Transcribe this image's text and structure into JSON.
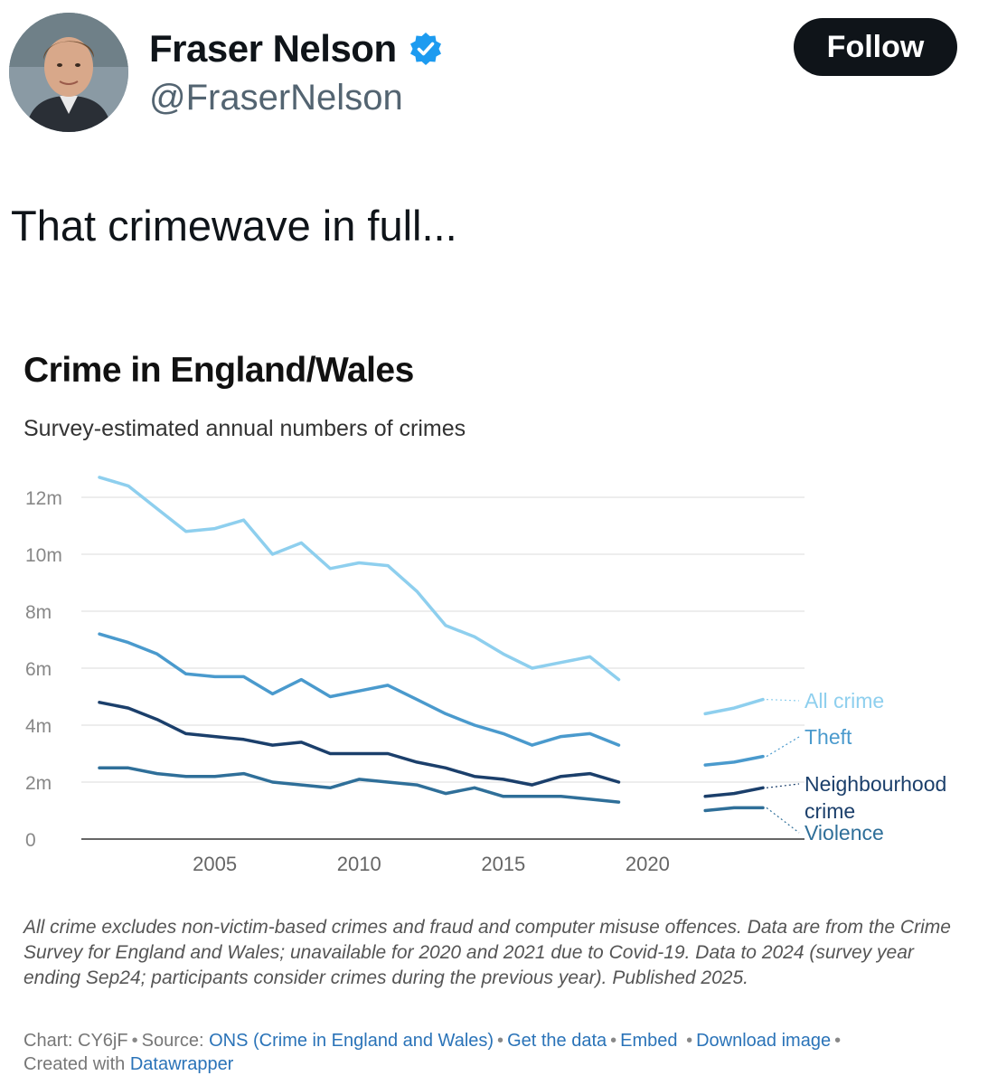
{
  "tweet": {
    "display_name": "Fraser Nelson",
    "handle": "@FraserNelson",
    "follow_label": "Follow",
    "text": "That crimewave in full...",
    "verified_icon": "verified-badge-icon",
    "colors": {
      "verified": "#1d9bf0",
      "follow_bg": "#0f1419",
      "handle": "#536471"
    }
  },
  "chart_data": {
    "type": "line",
    "title": "Crime in England/Wales",
    "subtitle": "Survey-estimated annual numbers of crimes",
    "ylim": [
      0,
      12
    ],
    "y_ticks": [
      {
        "value": 0,
        "label": "0"
      },
      {
        "value": 2,
        "label": "2m"
      },
      {
        "value": 4,
        "label": "4m"
      },
      {
        "value": 6,
        "label": "6m"
      },
      {
        "value": 8,
        "label": "8m"
      },
      {
        "value": 10,
        "label": "10m"
      },
      {
        "value": 12,
        "label": "12m"
      }
    ],
    "x_ticks": [
      {
        "value": 2005,
        "label": "2005"
      },
      {
        "value": 2010,
        "label": "2010"
      },
      {
        "value": 2015,
        "label": "2015"
      },
      {
        "value": 2020,
        "label": "2020"
      }
    ],
    "xlim": [
      2001,
      2024.5
    ],
    "grid": true,
    "legend": "right, direct labels",
    "series": [
      {
        "name": "All crime",
        "color": "#8ecfee",
        "segments": [
          [
            [
              2001,
              12.7
            ],
            [
              2002,
              12.4
            ],
            [
              2003,
              11.6
            ],
            [
              2004,
              10.8
            ],
            [
              2005,
              10.9
            ],
            [
              2006,
              11.2
            ],
            [
              2007,
              10.0
            ],
            [
              2008,
              10.4
            ],
            [
              2009,
              9.5
            ],
            [
              2010,
              9.7
            ],
            [
              2011,
              9.6
            ],
            [
              2012,
              8.7
            ],
            [
              2013,
              7.5
            ],
            [
              2014,
              7.1
            ],
            [
              2015,
              6.5
            ],
            [
              2016,
              6.0
            ],
            [
              2017,
              6.2
            ],
            [
              2018,
              6.4
            ],
            [
              2019,
              5.6
            ]
          ],
          [
            [
              2022,
              4.4
            ],
            [
              2023,
              4.6
            ],
            [
              2024,
              4.9
            ]
          ]
        ]
      },
      {
        "name": "Theft",
        "color": "#4a9acd",
        "segments": [
          [
            [
              2001,
              7.2
            ],
            [
              2002,
              6.9
            ],
            [
              2003,
              6.5
            ],
            [
              2004,
              5.8
            ],
            [
              2005,
              5.7
            ],
            [
              2006,
              5.7
            ],
            [
              2007,
              5.1
            ],
            [
              2008,
              5.6
            ],
            [
              2009,
              5.0
            ],
            [
              2010,
              5.2
            ],
            [
              2011,
              5.4
            ],
            [
              2012,
              4.9
            ],
            [
              2013,
              4.4
            ],
            [
              2014,
              4.0
            ],
            [
              2015,
              3.7
            ],
            [
              2016,
              3.3
            ],
            [
              2017,
              3.6
            ],
            [
              2018,
              3.7
            ],
            [
              2019,
              3.3
            ]
          ],
          [
            [
              2022,
              2.6
            ],
            [
              2023,
              2.7
            ],
            [
              2024,
              2.9
            ]
          ]
        ]
      },
      {
        "name": "Neighbourhood crime",
        "color": "#1b3f6b",
        "segments": [
          [
            [
              2001,
              4.8
            ],
            [
              2002,
              4.6
            ],
            [
              2003,
              4.2
            ],
            [
              2004,
              3.7
            ],
            [
              2005,
              3.6
            ],
            [
              2006,
              3.5
            ],
            [
              2007,
              3.3
            ],
            [
              2008,
              3.4
            ],
            [
              2009,
              3.0
            ],
            [
              2010,
              3.0
            ],
            [
              2011,
              3.0
            ],
            [
              2012,
              2.7
            ],
            [
              2013,
              2.5
            ],
            [
              2014,
              2.2
            ],
            [
              2015,
              2.1
            ],
            [
              2016,
              1.9
            ],
            [
              2017,
              2.2
            ],
            [
              2018,
              2.3
            ],
            [
              2019,
              2.0
            ]
          ],
          [
            [
              2022,
              1.5
            ],
            [
              2023,
              1.6
            ],
            [
              2024,
              1.8
            ]
          ]
        ]
      },
      {
        "name": "Violence",
        "color": "#2f6f99",
        "segments": [
          [
            [
              2001,
              2.5
            ],
            [
              2002,
              2.5
            ],
            [
              2003,
              2.3
            ],
            [
              2004,
              2.2
            ],
            [
              2005,
              2.2
            ],
            [
              2006,
              2.3
            ],
            [
              2007,
              2.0
            ],
            [
              2008,
              1.9
            ],
            [
              2009,
              1.8
            ],
            [
              2010,
              2.1
            ],
            [
              2011,
              2.0
            ],
            [
              2012,
              1.9
            ],
            [
              2013,
              1.6
            ],
            [
              2014,
              1.8
            ],
            [
              2015,
              1.5
            ],
            [
              2016,
              1.5
            ],
            [
              2017,
              1.5
            ],
            [
              2018,
              1.4
            ],
            [
              2019,
              1.3
            ]
          ],
          [
            [
              2022,
              1.0
            ],
            [
              2023,
              1.1
            ],
            [
              2024,
              1.1
            ]
          ]
        ]
      }
    ],
    "legend_labels": [
      {
        "series": "All crime",
        "lines": [
          "All crime"
        ]
      },
      {
        "series": "Theft",
        "lines": [
          "Theft"
        ]
      },
      {
        "series": "Neighbourhood crime",
        "lines": [
          "Neighbourhood",
          "crime"
        ]
      },
      {
        "series": "Violence",
        "lines": [
          "Violence"
        ]
      }
    ],
    "notes": "All crime excludes non-victim-based crimes and fraud and computer misuse offences. Data are from the Crime Survey for England and Wales; unavailable for 2020 and 2021 due to Covid-19. Data to 2024 (survey year ending Sep24; participants consider crimes during the previous year). Published 2025.",
    "footer": {
      "chart_id": "Chart: CY6jF",
      "source_prefix": "Source:",
      "source_link": "ONS (Crime in England and Wales)",
      "get_data": "Get the data",
      "embed": "Embed",
      "download": "Download image",
      "created_prefix": "Created with",
      "created_link": "Datawrapper"
    }
  }
}
